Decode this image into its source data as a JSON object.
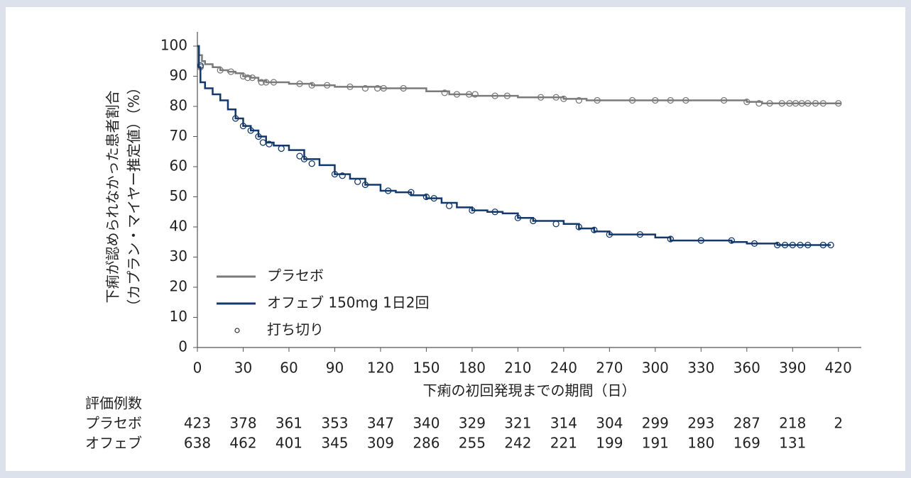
{
  "chart_data": {
    "type": "step",
    "x_label": "下痢の初回発現までの期間（日）",
    "y_label": [
      "下痢が認められなかった患者割合",
      "（カプラン・マイヤー推定値）（%）"
    ],
    "xlim": [
      0,
      435
    ],
    "ylim": [
      0,
      100
    ],
    "xticks": [
      0,
      30,
      60,
      90,
      120,
      150,
      180,
      210,
      240,
      270,
      300,
      330,
      360,
      390,
      420
    ],
    "yticks": [
      0,
      10,
      20,
      30,
      40,
      50,
      60,
      70,
      80,
      90,
      100
    ],
    "censor_label": "打ち切り",
    "series": [
      {
        "name": "プラセボ",
        "color": "#7a7a7a",
        "x": [
          0,
          1,
          3,
          5,
          10,
          15,
          20,
          25,
          30,
          35,
          40,
          45,
          60,
          75,
          90,
          120,
          150,
          165,
          180,
          210,
          240,
          255,
          270,
          300,
          330,
          360,
          370,
          380,
          422
        ],
        "values": [
          100,
          97,
          95,
          94,
          93,
          92,
          91.5,
          91,
          90,
          89.5,
          88.5,
          88,
          87.5,
          87,
          86.5,
          86,
          85,
          84,
          83.5,
          83,
          82.5,
          82,
          82,
          82,
          82,
          81.5,
          81,
          81,
          81
        ],
        "censor_x": [
          2,
          15,
          22,
          30,
          33,
          36,
          42,
          45,
          50,
          67,
          75,
          85,
          100,
          110,
          118,
          122,
          135,
          162,
          170,
          178,
          182,
          195,
          203,
          225,
          235,
          240,
          250,
          262,
          285,
          300,
          310,
          320,
          345,
          360,
          368,
          375,
          383,
          388,
          392,
          396,
          400,
          405,
          410,
          420
        ],
        "censor_values": [
          93,
          92,
          91.5,
          90,
          89.5,
          89.5,
          88,
          88,
          88,
          87.5,
          87,
          87,
          86.5,
          86,
          86,
          86,
          86,
          84.5,
          84,
          84,
          84,
          83.5,
          83.5,
          83,
          83,
          82.5,
          82,
          82,
          82,
          82,
          82,
          82,
          82,
          81.5,
          81,
          81,
          81,
          81,
          81,
          81,
          81,
          81,
          81,
          81
        ]
      },
      {
        "name": "オフェブ 150mg 1日2回",
        "color": "#13386b",
        "x": [
          0,
          1,
          2,
          5,
          10,
          15,
          20,
          25,
          30,
          35,
          40,
          45,
          50,
          60,
          70,
          80,
          90,
          100,
          110,
          120,
          130,
          140,
          150,
          160,
          170,
          180,
          190,
          200,
          210,
          220,
          240,
          250,
          260,
          270,
          290,
          300,
          310,
          330,
          350,
          360,
          380,
          415
        ],
        "values": [
          100,
          93,
          88,
          86,
          84,
          82,
          79,
          76,
          73.5,
          72,
          70,
          68,
          67,
          65.5,
          62.5,
          60.5,
          57.5,
          56,
          54,
          52,
          51.5,
          50.5,
          49.5,
          48,
          46.5,
          45.5,
          45,
          44.5,
          43,
          42,
          41,
          39.5,
          38.5,
          37.5,
          37.5,
          36.5,
          35.5,
          35.5,
          35,
          34.5,
          34,
          34
        ],
        "censor_x": [
          2,
          25,
          30,
          35,
          40,
          43,
          47,
          55,
          67,
          70,
          75,
          90,
          95,
          105,
          110,
          125,
          140,
          150,
          155,
          165,
          180,
          195,
          210,
          220,
          235,
          250,
          260,
          270,
          290,
          310,
          330,
          350,
          365,
          380,
          385,
          390,
          395,
          400,
          410,
          415
        ],
        "censor_values": [
          93.5,
          76,
          73.5,
          72,
          70,
          68,
          67.5,
          66,
          63.5,
          62.5,
          61,
          57.5,
          57,
          55,
          54,
          52,
          51.5,
          50,
          49.5,
          47,
          45.5,
          45,
          43,
          42,
          41,
          40,
          39,
          37.5,
          37.5,
          36,
          35.5,
          35.5,
          34.5,
          34,
          34,
          34,
          34,
          34,
          34,
          34
        ]
      }
    ],
    "risk_table": {
      "title": "評価例数",
      "rows": [
        {
          "label": "プラセボ",
          "counts": [
            423,
            378,
            361,
            353,
            347,
            340,
            329,
            321,
            314,
            304,
            299,
            293,
            287,
            218,
            2
          ]
        },
        {
          "label": "オフェブ",
          "counts": [
            638,
            462,
            401,
            345,
            309,
            286,
            255,
            242,
            221,
            199,
            191,
            180,
            169,
            131
          ]
        }
      ]
    }
  }
}
